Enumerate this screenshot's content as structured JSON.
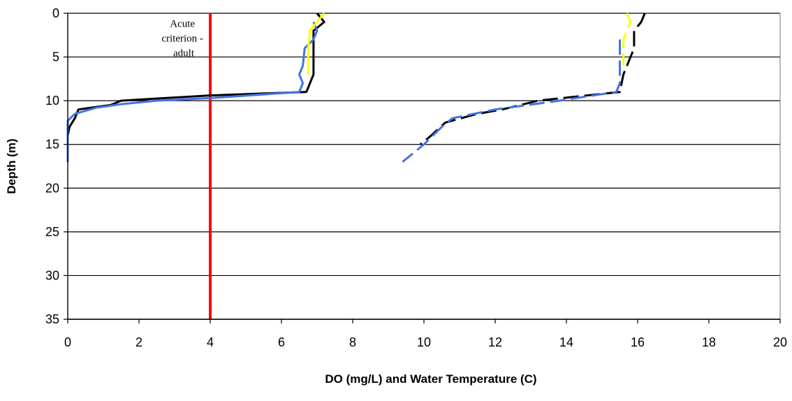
{
  "chart_data": {
    "type": "line",
    "xlabel": "DO (mg/L) and Water Temperature (C)",
    "ylabel": "Depth (m)",
    "xlim": [
      0,
      20
    ],
    "ylim": [
      0,
      35
    ],
    "y_inverted": true,
    "x_ticks": [
      0,
      2,
      4,
      6,
      8,
      10,
      12,
      14,
      16,
      18,
      20
    ],
    "y_ticks": [
      0,
      5,
      10,
      15,
      20,
      25,
      30,
      35
    ],
    "grid": "horizontal",
    "colors": {
      "black": "#000000",
      "blue": "#4472e6",
      "yellow": "#ffff00",
      "red": "#ff0000"
    },
    "annotation": {
      "lines": [
        "Acute",
        "criterion -",
        "adult"
      ],
      "x": 4.0,
      "y": 3.0
    },
    "reference_line": {
      "x": 4,
      "y_range": [
        0,
        35
      ],
      "color": "#ff0000"
    },
    "series": [
      {
        "style": "solid",
        "color": "#000000",
        "points": [
          [
            7.0,
            0
          ],
          [
            7.2,
            1
          ],
          [
            6.9,
            2
          ],
          [
            6.9,
            4
          ],
          [
            6.9,
            7
          ],
          [
            6.8,
            8
          ],
          [
            6.7,
            9
          ],
          [
            4.0,
            9.4
          ],
          [
            1.5,
            10
          ],
          [
            1.2,
            10.5
          ],
          [
            0.3,
            11
          ],
          [
            0.2,
            12
          ],
          [
            0.05,
            13
          ],
          [
            0.0,
            14
          ],
          [
            0.0,
            17
          ]
        ]
      },
      {
        "style": "solid",
        "color": "#4472e6",
        "points": [
          [
            6.9,
            1
          ],
          [
            7.0,
            2
          ],
          [
            6.9,
            3
          ],
          [
            6.65,
            4
          ],
          [
            6.6,
            6
          ],
          [
            6.5,
            7
          ],
          [
            6.6,
            8
          ],
          [
            6.5,
            9
          ],
          [
            4.0,
            9.7
          ],
          [
            2.5,
            10
          ],
          [
            1.5,
            10.4
          ],
          [
            0.8,
            10.8
          ],
          [
            0.2,
            11.5
          ],
          [
            0.0,
            12.3
          ],
          [
            0.0,
            17
          ]
        ]
      },
      {
        "style": "solid",
        "color": "#ffff00",
        "points": [
          [
            7.2,
            0
          ],
          [
            7.0,
            1
          ],
          [
            6.8,
            2
          ],
          [
            6.75,
            4
          ],
          [
            6.75,
            7
          ]
        ]
      },
      {
        "style": "dashed",
        "color": "#000000",
        "points": [
          [
            16.2,
            0
          ],
          [
            16.1,
            1
          ],
          [
            15.9,
            2
          ],
          [
            15.9,
            4
          ],
          [
            15.7,
            6
          ],
          [
            15.6,
            7
          ],
          [
            15.5,
            9
          ],
          [
            13.2,
            10
          ],
          [
            12.2,
            11
          ],
          [
            11.5,
            11.5
          ],
          [
            10.6,
            12.5
          ],
          [
            10.2,
            14
          ],
          [
            9.9,
            15
          ]
        ]
      },
      {
        "style": "dashed",
        "color": "#4472e6",
        "points": [
          [
            15.5,
            3
          ],
          [
            15.5,
            6
          ],
          [
            15.5,
            8
          ],
          [
            15.4,
            9
          ],
          [
            13.8,
            10
          ],
          [
            12.0,
            11
          ],
          [
            10.8,
            12
          ],
          [
            10.5,
            13
          ],
          [
            10.0,
            15
          ],
          [
            9.4,
            17
          ]
        ]
      },
      {
        "style": "dashed",
        "color": "#ffff00",
        "points": [
          [
            15.7,
            0
          ],
          [
            15.8,
            1
          ],
          [
            15.7,
            2
          ],
          [
            15.6,
            3
          ],
          [
            15.6,
            5
          ],
          [
            15.6,
            6
          ]
        ]
      }
    ]
  }
}
